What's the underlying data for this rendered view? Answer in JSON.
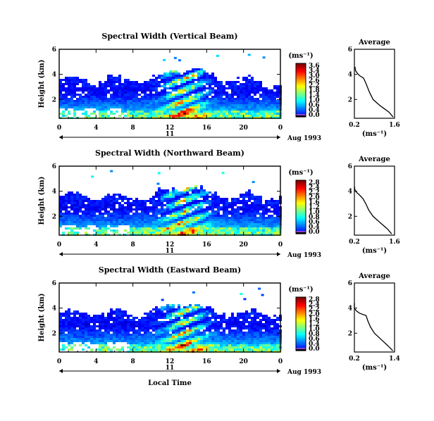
{
  "chart_data": [
    {
      "type": "heatmap",
      "title": "Spectral Width (Vertical Beam)",
      "ylabel": "Height (km)",
      "x_ticks": [
        "0",
        "4",
        "8",
        "12",
        "16",
        "20",
        "0"
      ],
      "y_ticks": [
        "2",
        "4",
        "6"
      ],
      "ylim": [
        0.5,
        6
      ],
      "xlim": [
        0,
        24
      ],
      "day": "11",
      "date_label": "Aug 1993",
      "colorbar": {
        "unit": "(ms⁻¹)",
        "ticks": [
          "3.6",
          "3.4",
          "3.0",
          "2.6",
          "2.2",
          "1.8",
          "1.4",
          "1.0",
          "0.6",
          "0.4",
          "0.0"
        ]
      },
      "average": {
        "title": "Average",
        "xlabel": "(ms⁻¹)",
        "x_ticks": [
          "0.2",
          "1.6"
        ],
        "xlim": [
          0.2,
          1.6
        ],
        "y_ticks": [
          "2",
          "4",
          "6"
        ],
        "profile": [
          [
            1.55,
            0.6
          ],
          [
            1.4,
            1.0
          ],
          [
            1.1,
            1.5
          ],
          [
            0.85,
            2.0
          ],
          [
            0.72,
            2.6
          ],
          [
            0.6,
            3.3
          ],
          [
            0.52,
            3.7
          ],
          [
            0.38,
            3.9
          ],
          [
            0.3,
            4.1
          ],
          [
            0.24,
            4.3
          ],
          [
            0.22,
            4.6
          ]
        ]
      }
    },
    {
      "type": "heatmap",
      "title": "Spectral Width (Northward Beam)",
      "ylabel": "Height (km)",
      "x_ticks": [
        "0",
        "4",
        "8",
        "12",
        "16",
        "20",
        "0"
      ],
      "y_ticks": [
        "2",
        "4",
        "6"
      ],
      "ylim": [
        0.5,
        6
      ],
      "xlim": [
        0,
        24
      ],
      "day": "11",
      "date_label": "Aug 1993",
      "colorbar": {
        "unit": "(ms⁻¹)",
        "ticks": [
          "2.8",
          "2.4",
          "2.2",
          "2.0",
          "1.6",
          "1.2",
          "1.0",
          "0.8",
          "0.6",
          "0.4",
          "0.0"
        ]
      },
      "average": {
        "title": "Average",
        "xlabel": "(ms⁻¹)",
        "x_ticks": [
          "0.2",
          "1.6"
        ],
        "xlim": [
          0.2,
          1.6
        ],
        "y_ticks": [
          "2",
          "4",
          "6"
        ],
        "profile": [
          [
            1.5,
            0.6
          ],
          [
            1.35,
            1.0
          ],
          [
            1.1,
            1.5
          ],
          [
            0.85,
            2.0
          ],
          [
            0.7,
            2.5
          ],
          [
            0.6,
            3.0
          ],
          [
            0.5,
            3.4
          ],
          [
            0.38,
            3.7
          ],
          [
            0.28,
            3.9
          ],
          [
            0.22,
            4.1
          ],
          [
            0.2,
            4.4
          ]
        ]
      }
    },
    {
      "type": "heatmap",
      "title": "Spectral Width (Eastward Beam)",
      "ylabel": "Height (km)",
      "xlabel": "Local Time",
      "x_ticks": [
        "0",
        "4",
        "8",
        "12",
        "16",
        "20",
        "0"
      ],
      "y_ticks": [
        "2",
        "4",
        "6"
      ],
      "ylim": [
        0.5,
        6
      ],
      "xlim": [
        0,
        24
      ],
      "day": "11",
      "date_label": "Aug 1993",
      "colorbar": {
        "unit": "(ms⁻¹)",
        "ticks": [
          "2.8",
          "2.4",
          "2.2",
          "2.0",
          "1.6",
          "1.2",
          "1.0",
          "0.8",
          "0.6",
          "0.4",
          "0.0"
        ]
      },
      "average": {
        "title": "Average",
        "xlabel": "(ms⁻¹)",
        "x_ticks": [
          "0.2",
          "1.4"
        ],
        "xlim": [
          0.2,
          1.4
        ],
        "y_ticks": [
          "2",
          "4",
          "6"
        ],
        "profile": [
          [
            1.35,
            0.6
          ],
          [
            1.2,
            1.0
          ],
          [
            1.0,
            1.5
          ],
          [
            0.8,
            2.0
          ],
          [
            0.68,
            2.5
          ],
          [
            0.6,
            3.0
          ],
          [
            0.55,
            3.4
          ],
          [
            0.35,
            3.6
          ],
          [
            0.25,
            3.8
          ],
          [
            0.2,
            4.0
          ],
          [
            0.2,
            4.4
          ]
        ]
      }
    }
  ]
}
